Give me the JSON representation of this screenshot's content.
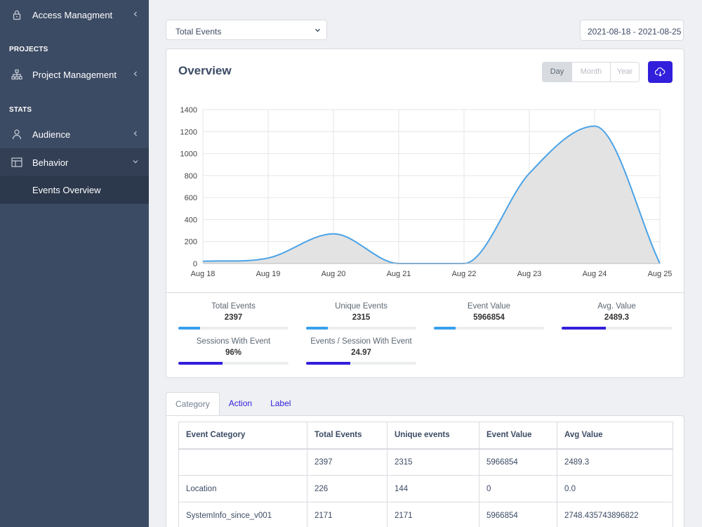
{
  "sidebar": {
    "items": [
      {
        "label": "Access Managment",
        "icon": "lock-icon"
      },
      {
        "label": "Project Management",
        "icon": "sitemap-icon"
      },
      {
        "label": "Audience",
        "icon": "user-icon"
      },
      {
        "label": "Behavior",
        "icon": "layout-icon"
      },
      {
        "label": "Events Overview"
      }
    ],
    "section_projects": "PROJECTS",
    "section_stats": "STATS"
  },
  "filter": {
    "metric_select": "Total Events",
    "date_range": "2021-08-18 - 2021-08-25"
  },
  "overview": {
    "title": "Overview",
    "range_buttons": [
      "Day",
      "Month",
      "Year"
    ],
    "selected_range": "Day",
    "download_icon": "cloud-download-icon",
    "accent_color": "#321fdb"
  },
  "chart_data": {
    "type": "area",
    "x": [
      "Aug 18",
      "Aug 19",
      "Aug 20",
      "Aug 21",
      "Aug 22",
      "Aug 23",
      "Aug 24",
      "Aug 25"
    ],
    "series": [
      {
        "values": [
          20,
          50,
          270,
          0,
          0,
          820,
          1250,
          0
        ],
        "color": "#4ba3e7",
        "fill": "#e0e0e0"
      }
    ],
    "yticks": [
      0,
      200,
      400,
      600,
      800,
      1000,
      1200,
      1400
    ],
    "ylim": [
      0,
      1400
    ],
    "grid": true
  },
  "stats": [
    {
      "label": "Total Events",
      "value": "2397",
      "progress": 0.2,
      "color": "#39a0ec"
    },
    {
      "label": "Unique Events",
      "value": "2315",
      "progress": 0.2,
      "color": "#39a0ec"
    },
    {
      "label": "Event Value",
      "value": "5966854",
      "progress": 0.2,
      "color": "#39a0ec"
    },
    {
      "label": "Avg. Value",
      "value": "2489.3",
      "progress": 0.4,
      "color": "#321fdb"
    },
    {
      "label": "Sessions With Event",
      "value": "96%",
      "progress": 0.4,
      "color": "#321fdb"
    },
    {
      "label": "Events / Session With Event",
      "value": "24.97",
      "progress": 0.4,
      "color": "#321fdb"
    }
  ],
  "tabs": [
    "Category",
    "Action",
    "Label"
  ],
  "table": {
    "headers": [
      "Event Category",
      "Total Events",
      "Unique events",
      "Event Value",
      "Avg Value"
    ],
    "rows": [
      [
        "",
        "2397",
        "2315",
        "5966854",
        "2489.3"
      ],
      [
        "Location",
        "226",
        "144",
        "0",
        "0.0"
      ],
      [
        "SystemInfo_since_v001",
        "2171",
        "2171",
        "5966854",
        "2748.435743896822"
      ]
    ]
  }
}
